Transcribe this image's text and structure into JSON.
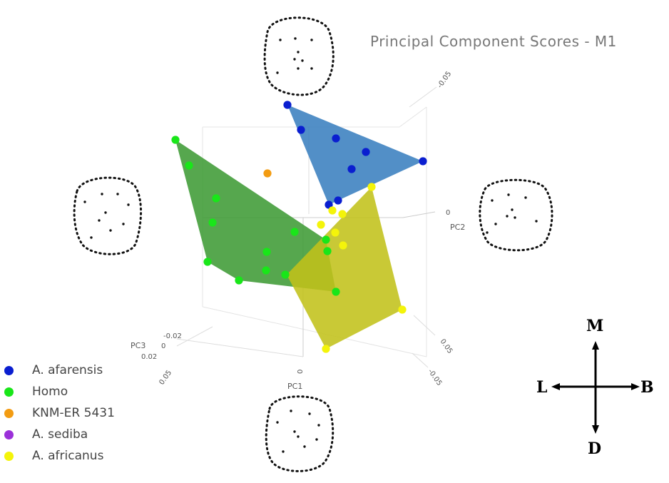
{
  "chart_data": {
    "type": "scatter",
    "title": "Principal Component Scores - M1",
    "axes": {
      "pc1": {
        "label": "PC1",
        "ticks": [
          "0.05",
          "0",
          "-0.05"
        ]
      },
      "pc2": {
        "label": "PC2",
        "ticks": [
          "-0.05",
          "0",
          "0.05"
        ]
      },
      "pc3": {
        "label": "PC3",
        "ticks": [
          "-0.02",
          "0",
          "0.02"
        ]
      }
    },
    "series": [
      {
        "name": "A. afarensis",
        "color": "#0a1ed0",
        "hull_color": "#3a7fbf",
        "points": [
          [
            403,
            147
          ],
          [
            422,
            182
          ],
          [
            471,
            194
          ],
          [
            513,
            213
          ],
          [
            593,
            226
          ],
          [
            493,
            237
          ],
          [
            474,
            281
          ],
          [
            461,
            287
          ]
        ],
        "hull": [
          [
            403,
            147
          ],
          [
            593,
            226
          ],
          [
            474,
            281
          ],
          [
            461,
            287
          ]
        ]
      },
      {
        "name": "Homo",
        "color": "#19e619",
        "hull_color": "#3f9b35",
        "points": [
          [
            246,
            196
          ],
          [
            265,
            232
          ],
          [
            303,
            278
          ],
          [
            298,
            312
          ],
          [
            413,
            325
          ],
          [
            457,
            336
          ],
          [
            374,
            353
          ],
          [
            459,
            352
          ],
          [
            291,
            367
          ],
          [
            373,
            379
          ],
          [
            335,
            393
          ],
          [
            400,
            385
          ],
          [
            471,
            409
          ]
        ],
        "hull": [
          [
            246,
            196
          ],
          [
            457,
            336
          ],
          [
            471,
            409
          ],
          [
            335,
            393
          ],
          [
            291,
            367
          ]
        ]
      },
      {
        "name": "KNM-ER 5431",
        "color": "#f39c12",
        "points": [
          [
            375,
            243
          ]
        ]
      },
      {
        "name": "A. sediba",
        "color": "#9b30d9",
        "points": []
      },
      {
        "name": "A. africanus",
        "color": "#f4f40a",
        "hull_color": "#c2c21a",
        "points": [
          [
            521,
            262
          ],
          [
            480,
            300
          ],
          [
            466,
            295
          ],
          [
            450,
            315
          ],
          [
            470,
            326
          ],
          [
            481,
            344
          ],
          [
            564,
            434
          ],
          [
            457,
            489
          ]
        ],
        "hull": [
          [
            521,
            262
          ],
          [
            564,
            434
          ],
          [
            457,
            489
          ],
          [
            402,
            385
          ]
        ]
      }
    ]
  },
  "compass": {
    "top": "M",
    "left": "L",
    "right": "B",
    "bottom": "D"
  }
}
